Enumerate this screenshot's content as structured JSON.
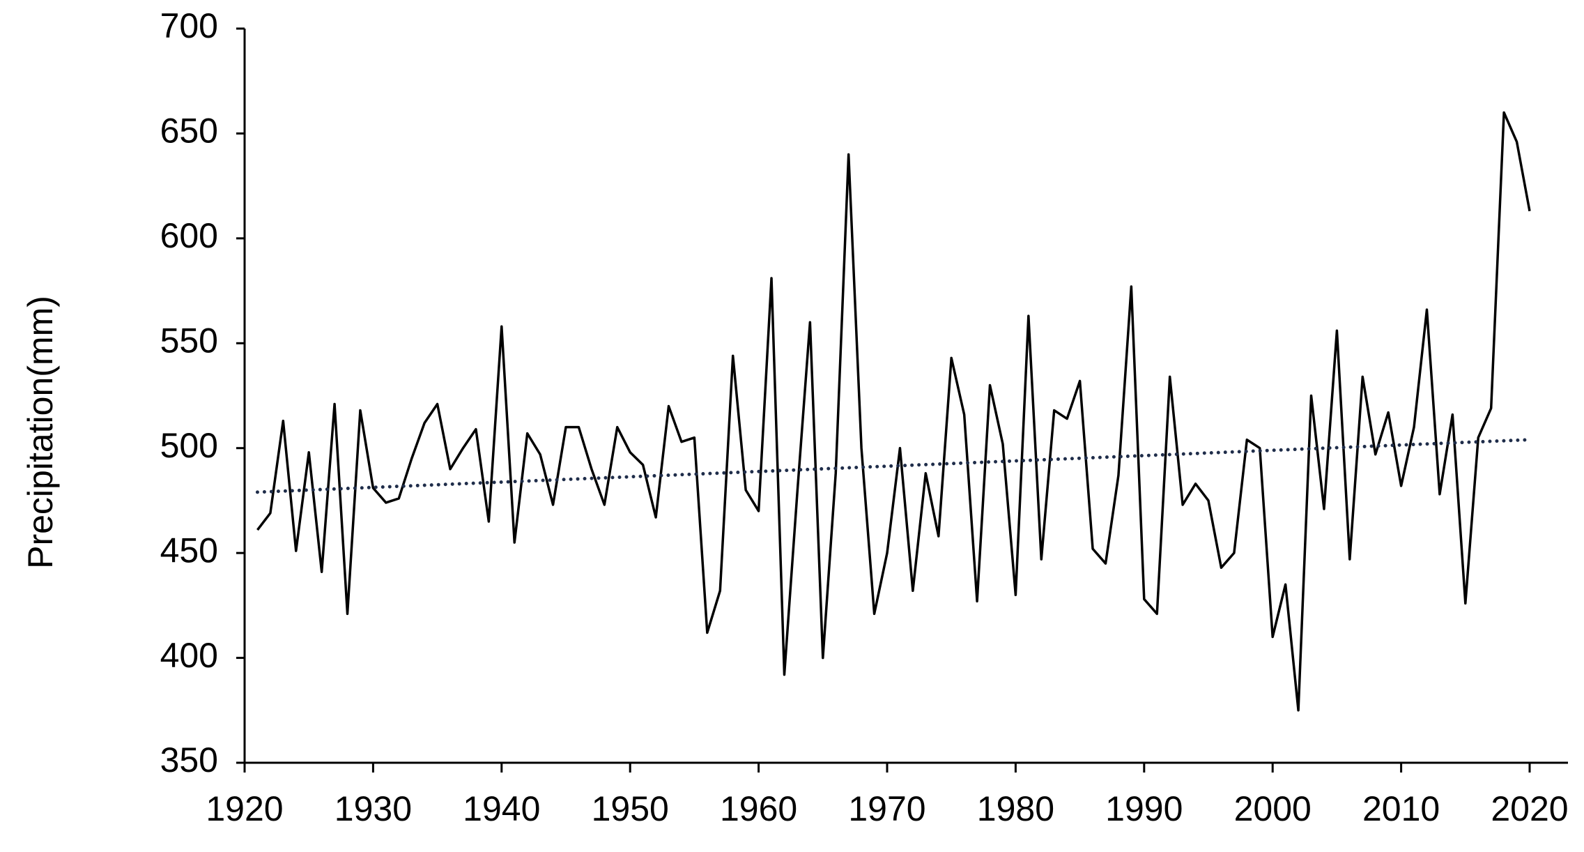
{
  "chart_data": {
    "type": "line",
    "y_label": "Precipitation(mm)",
    "x": [
      1921,
      1922,
      1923,
      1924,
      1925,
      1926,
      1927,
      1928,
      1929,
      1930,
      1931,
      1932,
      1933,
      1934,
      1935,
      1936,
      1937,
      1938,
      1939,
      1940,
      1941,
      1942,
      1943,
      1944,
      1945,
      1946,
      1947,
      1948,
      1949,
      1950,
      1951,
      1952,
      1953,
      1954,
      1955,
      1956,
      1957,
      1958,
      1959,
      1960,
      1961,
      1962,
      1963,
      1964,
      1965,
      1966,
      1967,
      1968,
      1969,
      1970,
      1971,
      1972,
      1973,
      1974,
      1975,
      1976,
      1977,
      1978,
      1979,
      1980,
      1981,
      1982,
      1983,
      1984,
      1985,
      1986,
      1987,
      1988,
      1989,
      1990,
      1991,
      1992,
      1993,
      1994,
      1995,
      1996,
      1997,
      1998,
      1999,
      2000,
      2001,
      2002,
      2003,
      2004,
      2005,
      2006,
      2007,
      2008,
      2009,
      2010,
      2011,
      2012,
      2013,
      2014,
      2015,
      2016,
      2017,
      2018,
      2019,
      2020
    ],
    "series": [
      {
        "color": "#000000",
        "style": "solid",
        "values": [
          461,
          469,
          513,
          451,
          498,
          441,
          521,
          421,
          518,
          481,
          474,
          476,
          495,
          512,
          521,
          490,
          500,
          509,
          465,
          558,
          455,
          507,
          497,
          473,
          510,
          510,
          490,
          473,
          510,
          498,
          492,
          467,
          520,
          503,
          505,
          412,
          432,
          544,
          480,
          470,
          581,
          392,
          478,
          560,
          400,
          488,
          640,
          500,
          421,
          450,
          500,
          432,
          488,
          458,
          543,
          516,
          427,
          530,
          502,
          430,
          563,
          447,
          518,
          514,
          532,
          452,
          445,
          487,
          577,
          428,
          421,
          534,
          473,
          483,
          475,
          443,
          450,
          504,
          500,
          410,
          435,
          375,
          525,
          471,
          556,
          447,
          534,
          497,
          517,
          482,
          510,
          566,
          478,
          516,
          426,
          505,
          519,
          660,
          646,
          613
        ]
      }
    ],
    "trend": {
      "color": "#1f2d4a",
      "style": "dotted",
      "x": [
        1921,
        2020
      ],
      "values": [
        479,
        504
      ]
    },
    "xlim": [
      1920,
      2020
    ],
    "xticks": [
      1920,
      1930,
      1940,
      1950,
      1960,
      1970,
      1980,
      1990,
      2000,
      2010,
      2020
    ],
    "ylim": [
      350,
      700
    ],
    "yticks": [
      350,
      400,
      450,
      500,
      550,
      600,
      650,
      700
    ]
  }
}
